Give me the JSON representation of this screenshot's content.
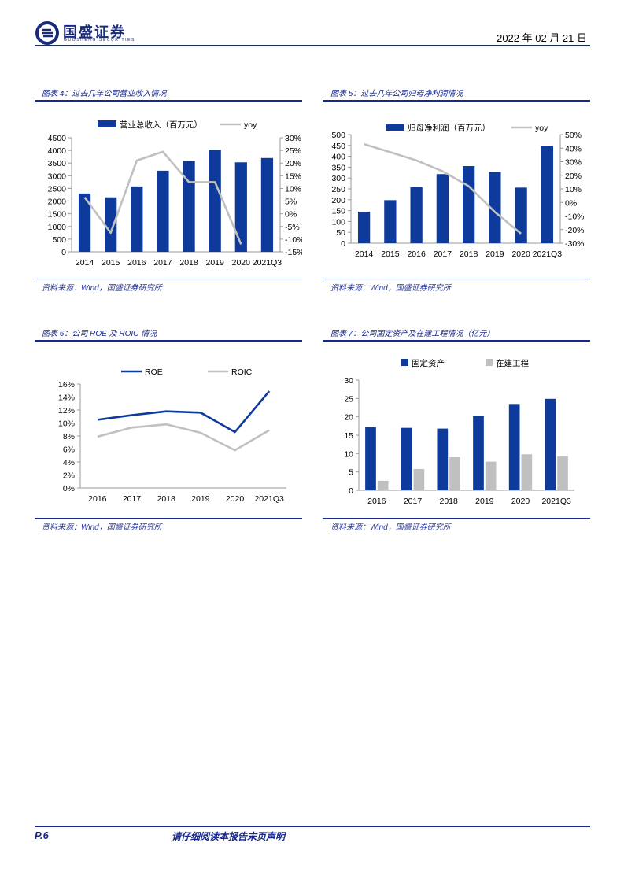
{
  "header": {
    "logo_cn": "国盛证券",
    "logo_en": "GUOSHENG SECURITIES",
    "date": "2022 年 02 月 21 日"
  },
  "panels": [
    {
      "title": "图表 4：过去几年公司营业收入情况",
      "source": "资料来源：Wind，国盛证券研究所",
      "chart_data": {
        "type": "bar",
        "categories": [
          "2014",
          "2015",
          "2016",
          "2017",
          "2018",
          "2019",
          "2020",
          "2021Q3"
        ],
        "series": [
          {
            "name": "营业总收入（百万元）",
            "kind": "bar",
            "axis": "left",
            "color": "#0d3a9b",
            "values": [
              2300,
              2150,
              2580,
              3200,
              3580,
              4020,
              3530,
              3700
            ]
          },
          {
            "name": "yoy",
            "kind": "line",
            "axis": "right",
            "color": "#c0c0c0",
            "values": [
              6.5,
              -7.5,
              21,
              24.5,
              12.5,
              12.5,
              -12,
              null
            ]
          }
        ],
        "ylim": [
          0,
          4500
        ],
        "yticks": [
          "0",
          "500",
          "1000",
          "1500",
          "2000",
          "2500",
          "3000",
          "3500",
          "4000",
          "4500"
        ],
        "y2lim": [
          -15,
          30
        ],
        "y2ticks": [
          "-15%",
          "-10%",
          "-5%",
          "0%",
          "5%",
          "10%",
          "15%",
          "20%",
          "25%",
          "30%"
        ],
        "legend": "top"
      }
    },
    {
      "title": "图表 5：过去几年公司归母净利润情况",
      "source": "资料来源：Wind，国盛证券研究所",
      "chart_data": {
        "type": "bar",
        "categories": [
          "2014",
          "2015",
          "2016",
          "2017",
          "2018",
          "2019",
          "2020",
          "2021Q3"
        ],
        "series": [
          {
            "name": "归母净利润（百万元）",
            "kind": "bar",
            "axis": "left",
            "color": "#0d3a9b",
            "values": [
              145,
              198,
              258,
              318,
              355,
              328,
              256,
              448
            ]
          },
          {
            "name": "yoy",
            "kind": "line",
            "axis": "right",
            "color": "#c0c0c0",
            "values": [
              43,
              37,
              31,
              23,
              12,
              -7,
              -23,
              null
            ]
          }
        ],
        "ylim": [
          0,
          500
        ],
        "yticks": [
          "0",
          "50",
          "100",
          "150",
          "200",
          "250",
          "300",
          "350",
          "400",
          "450",
          "500"
        ],
        "y2lim": [
          -30,
          50
        ],
        "y2ticks": [
          "-30%",
          "-20%",
          "-10%",
          "0%",
          "10%",
          "20%",
          "30%",
          "40%",
          "50%"
        ],
        "legend": "top"
      }
    },
    {
      "title": "图表 6：公司 ROE 及 ROIC 情况",
      "source": "资料来源：Wind，国盛证券研究所",
      "chart_data": {
        "type": "line",
        "categories": [
          "2016",
          "2017",
          "2018",
          "2019",
          "2020",
          "2021Q3"
        ],
        "series": [
          {
            "name": "ROE",
            "color": "#0d3a9b",
            "values": [
              10.5,
              11.2,
              11.8,
              11.6,
              8.6,
              14.9
            ]
          },
          {
            "name": "ROIC",
            "color": "#c0c0c0",
            "values": [
              7.9,
              9.3,
              9.8,
              8.5,
              5.8,
              8.9
            ]
          }
        ],
        "ylim": [
          0,
          16
        ],
        "yticks": [
          "0%",
          "2%",
          "4%",
          "6%",
          "8%",
          "10%",
          "12%",
          "14%",
          "16%"
        ],
        "legend": "top"
      }
    },
    {
      "title": "图表 7：公司固定资产及在建工程情况（亿元）",
      "source": "资料来源：Wind，国盛证券研究所",
      "chart_data": {
        "type": "bar",
        "categories": [
          "2016",
          "2017",
          "2018",
          "2019",
          "2020",
          "2021Q3"
        ],
        "series": [
          {
            "name": "固定资产",
            "color": "#0d3a9b",
            "values": [
              17.2,
              17.0,
              16.8,
              20.3,
              23.5,
              24.9
            ]
          },
          {
            "name": "在建工程",
            "color": "#c0c0c0",
            "values": [
              2.6,
              5.8,
              9.0,
              7.8,
              9.8,
              9.2
            ]
          }
        ],
        "ylim": [
          0,
          30
        ],
        "yticks": [
          "0",
          "5",
          "10",
          "15",
          "20",
          "25",
          "30"
        ],
        "legend": "top"
      }
    }
  ],
  "footer": {
    "page": "P.6",
    "note": "请仔细阅读本报告末页声明"
  }
}
